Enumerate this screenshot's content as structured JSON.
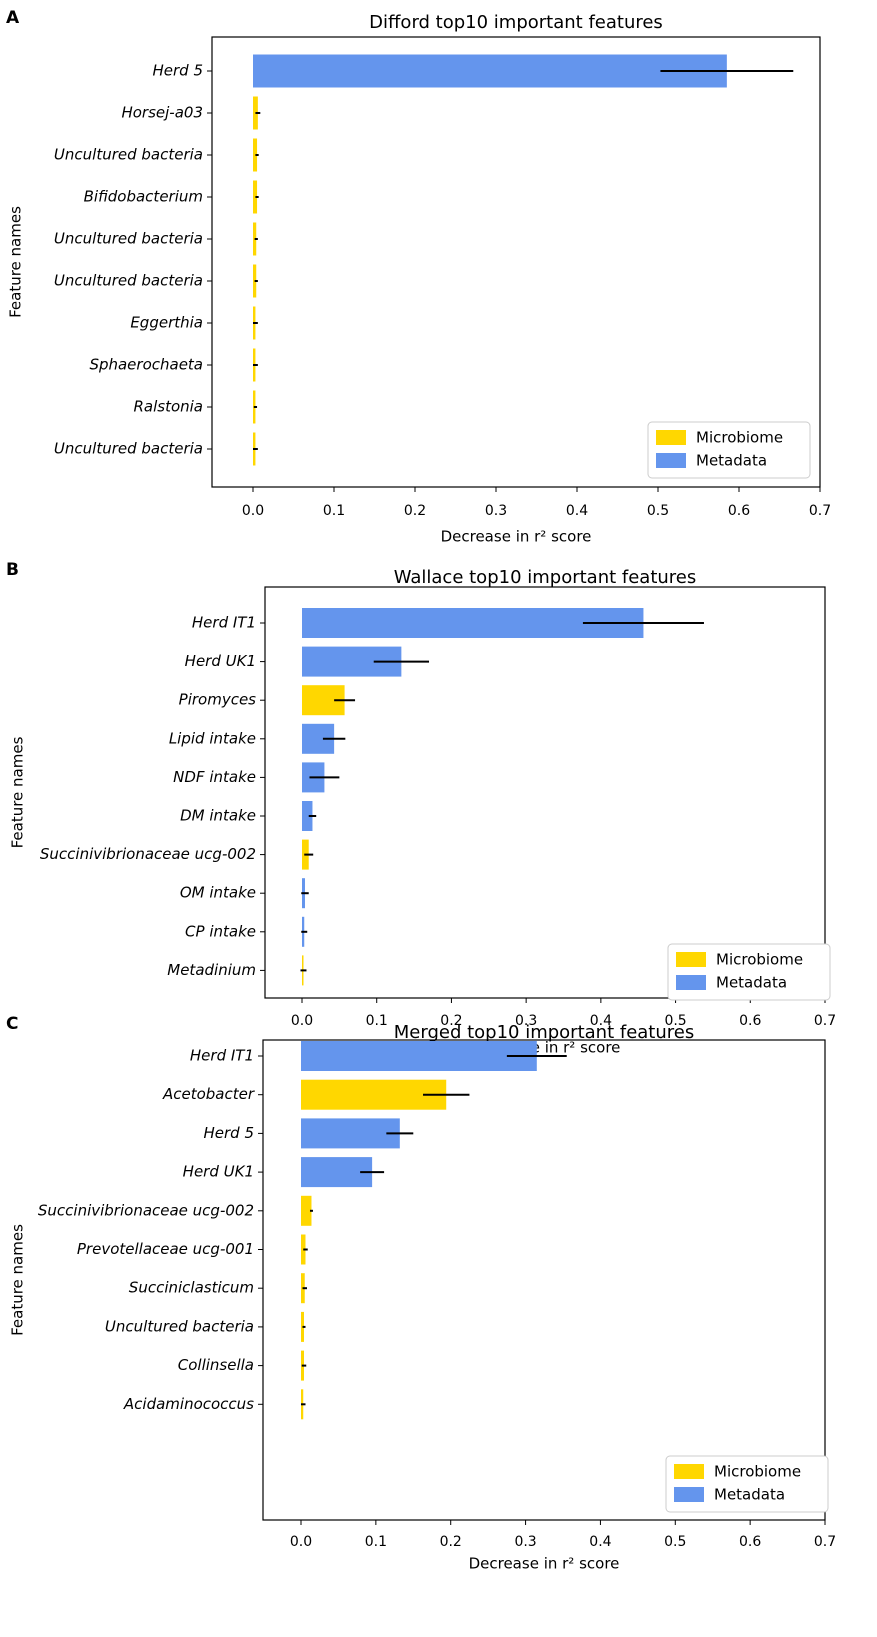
{
  "colors": {
    "Microbiome": "#FFD700",
    "Metadata": "#6495ED",
    "error": "#000000"
  },
  "chart_data": [
    {
      "panel": "A",
      "type": "bar",
      "orientation": "horizontal",
      "title": "Difford top10 important features",
      "xlabel": "Decrease in r² score",
      "ylabel": "Feature names",
      "xlim": [
        -0.055,
        0.7
      ],
      "xticks": [
        "0.0",
        "0.1",
        "0.2",
        "0.3",
        "0.4",
        "0.5",
        "0.6",
        "0.7"
      ],
      "legend": [
        "Microbiome",
        "Metadata"
      ],
      "legend_position": "lower-right",
      "categories": [
        "Herd 5",
        "Horsej-a03",
        "Uncultured bacteria",
        "Bifidobacterium",
        "Uncultured bacteria",
        "Uncultured bacteria",
        "Eggerthia",
        "Sphaerochaeta",
        "Ralstonia",
        "Uncultured bacteria"
      ],
      "values": [
        0.585,
        0.006,
        0.005,
        0.005,
        0.004,
        0.004,
        0.003,
        0.003,
        0.003,
        0.003
      ],
      "errors": [
        0.082,
        0.003,
        0.002,
        0.002,
        0.002,
        0.002,
        0.003,
        0.003,
        0.002,
        0.003
      ],
      "groups": [
        "Metadata",
        "Microbiome",
        "Microbiome",
        "Microbiome",
        "Microbiome",
        "Microbiome",
        "Microbiome",
        "Microbiome",
        "Microbiome",
        "Microbiome"
      ]
    },
    {
      "panel": "B",
      "type": "bar",
      "orientation": "horizontal",
      "title": "Wallace top10 important features",
      "xlabel": "Decrease in r² score",
      "ylabel": "Feature names",
      "xlim": [
        -0.05,
        0.7
      ],
      "xticks": [
        "0.0",
        "0.1",
        "0.2",
        "0.3",
        "0.4",
        "0.5",
        "0.6",
        "0.7"
      ],
      "legend": [
        "Microbiome",
        "Metadata"
      ],
      "legend_position": "lower-right",
      "categories": [
        "Herd IT1",
        "Herd UK1",
        "Piromyces",
        "Lipid intake",
        "NDF intake",
        "DM intake",
        "Succinivibrionaceae ucg-002",
        "OM intake",
        "CP intake",
        "Metadinium"
      ],
      "values": [
        0.457,
        0.133,
        0.057,
        0.043,
        0.03,
        0.014,
        0.009,
        0.004,
        0.003,
        0.002
      ],
      "errors": [
        0.081,
        0.037,
        0.014,
        0.015,
        0.02,
        0.005,
        0.006,
        0.005,
        0.004,
        0.004
      ],
      "groups": [
        "Metadata",
        "Metadata",
        "Microbiome",
        "Metadata",
        "Metadata",
        "Metadata",
        "Microbiome",
        "Metadata",
        "Metadata",
        "Microbiome"
      ]
    },
    {
      "panel": "C",
      "type": "bar",
      "orientation": "horizontal",
      "title": "Merged top10 important features",
      "xlabel": "Decrease in r² score",
      "ylabel": "Feature names",
      "xlim": [
        -0.05,
        0.7
      ],
      "xticks": [
        "0.0",
        "0.1",
        "0.2",
        "0.3",
        "0.4",
        "0.5",
        "0.6",
        "0.7"
      ],
      "legend": [
        "Microbiome",
        "Metadata"
      ],
      "legend_position": "lower-right",
      "categories": [
        "Herd IT1",
        "Acetobacter",
        "Herd 5",
        "Herd UK1",
        "Succinivibrionaceae ucg-002",
        "Prevotellaceae ucg-001",
        "Succiniclasticum",
        "Uncultured bacteria",
        "Collinsella",
        "Acidaminococcus"
      ],
      "values": [
        0.315,
        0.194,
        0.132,
        0.095,
        0.014,
        0.006,
        0.005,
        0.004,
        0.004,
        0.003
      ],
      "errors": [
        0.04,
        0.031,
        0.018,
        0.016,
        0.002,
        0.003,
        0.003,
        0.002,
        0.003,
        0.003
      ],
      "groups": [
        "Metadata",
        "Microbiome",
        "Metadata",
        "Metadata",
        "Microbiome",
        "Microbiome",
        "Microbiome",
        "Microbiome",
        "Microbiome",
        "Microbiome"
      ]
    }
  ]
}
